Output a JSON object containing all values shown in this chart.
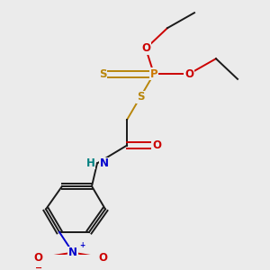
{
  "bg_color": "#ebebeb",
  "bond_color": "#1a1a1a",
  "S_color": "#b8860b",
  "O_color": "#cc0000",
  "N_color": "#0000cc",
  "H_color": "#008080",
  "P_color": "#cc7700",
  "figsize": [
    3.0,
    3.0
  ],
  "dpi": 100,
  "xlim": [
    0.0,
    1.0
  ],
  "ylim": [
    0.0,
    1.0
  ]
}
